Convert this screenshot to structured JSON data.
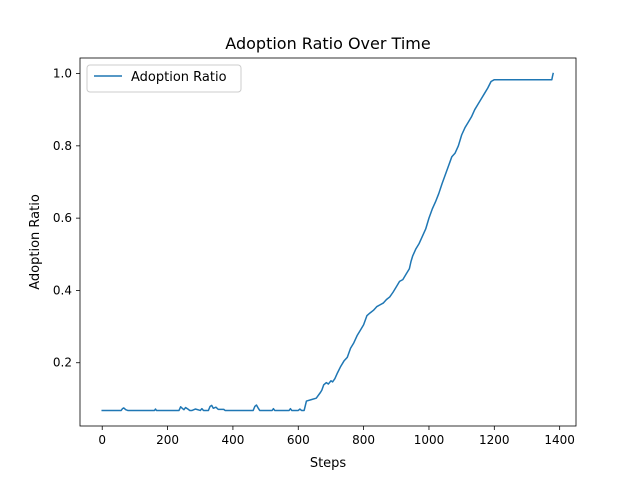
{
  "chart_data": {
    "type": "line",
    "title": "Adoption Ratio Over Time",
    "xlabel": "Steps",
    "ylabel": "Adoption Ratio",
    "xlim": [
      -68,
      1450
    ],
    "ylim": [
      0.025,
      1.043
    ],
    "xticks": [
      0,
      200,
      400,
      600,
      800,
      1000,
      1200,
      1400
    ],
    "yticks": [
      0.2,
      0.4,
      0.6,
      0.8,
      1.0
    ],
    "xtick_labels": [
      "0",
      "200",
      "400",
      "600",
      "800",
      "1000",
      "1200",
      "1400"
    ],
    "ytick_labels": [
      "0.2",
      "0.4",
      "0.6",
      "0.8",
      "1.0"
    ],
    "grid": false,
    "legend": {
      "position": "upper-left",
      "entries": [
        "Adoption Ratio"
      ]
    },
    "series": [
      {
        "name": "Adoption Ratio",
        "color": "#1f77b4",
        "x": [
          0,
          58,
          62,
          66,
          72,
          78,
          160,
          163,
          166,
          235,
          240,
          245,
          250,
          255,
          262,
          268,
          275,
          285,
          300,
          305,
          310,
          325,
          330,
          335,
          340,
          348,
          355,
          372,
          376,
          380,
          462,
          467,
          472,
          477,
          482,
          520,
          524,
          528,
          572,
          576,
          580,
          600,
          605,
          610,
          618,
          625,
          640,
          655,
          668,
          672,
          678,
          686,
          692,
          700,
          705,
          712,
          720,
          730,
          740,
          750,
          760,
          770,
          780,
          790,
          800,
          810,
          820,
          830,
          840,
          850,
          860,
          870,
          880,
          890,
          900,
          910,
          920,
          930,
          940,
          945,
          950,
          960,
          970,
          980,
          990,
          1000,
          1010,
          1020,
          1030,
          1040,
          1050,
          1060,
          1070,
          1080,
          1090,
          1100,
          1110,
          1120,
          1130,
          1140,
          1150,
          1160,
          1170,
          1180,
          1190,
          1200,
          1210,
          1220,
          1230,
          1240,
          1250,
          1300,
          1340,
          1376,
          1378,
          1380
        ],
        "y": [
          0.068,
          0.068,
          0.073,
          0.075,
          0.07,
          0.068,
          0.068,
          0.072,
          0.068,
          0.068,
          0.078,
          0.074,
          0.07,
          0.076,
          0.072,
          0.068,
          0.068,
          0.072,
          0.068,
          0.073,
          0.068,
          0.068,
          0.079,
          0.082,
          0.074,
          0.077,
          0.071,
          0.071,
          0.068,
          0.068,
          0.068,
          0.079,
          0.083,
          0.075,
          0.068,
          0.068,
          0.073,
          0.068,
          0.068,
          0.073,
          0.068,
          0.068,
          0.072,
          0.068,
          0.068,
          0.094,
          0.098,
          0.102,
          0.118,
          0.124,
          0.139,
          0.145,
          0.141,
          0.15,
          0.147,
          0.156,
          0.172,
          0.19,
          0.205,
          0.215,
          0.24,
          0.255,
          0.275,
          0.29,
          0.305,
          0.33,
          0.338,
          0.345,
          0.355,
          0.36,
          0.365,
          0.375,
          0.382,
          0.395,
          0.41,
          0.425,
          0.43,
          0.445,
          0.46,
          0.48,
          0.495,
          0.515,
          0.53,
          0.55,
          0.57,
          0.6,
          0.625,
          0.645,
          0.668,
          0.695,
          0.72,
          0.745,
          0.77,
          0.78,
          0.8,
          0.83,
          0.85,
          0.865,
          0.88,
          0.9,
          0.915,
          0.93,
          0.945,
          0.96,
          0.978,
          0.983,
          0.983,
          0.983,
          0.983,
          0.983,
          0.983,
          0.983,
          0.983,
          0.983,
          0.992,
          1.0
        ]
      }
    ]
  }
}
